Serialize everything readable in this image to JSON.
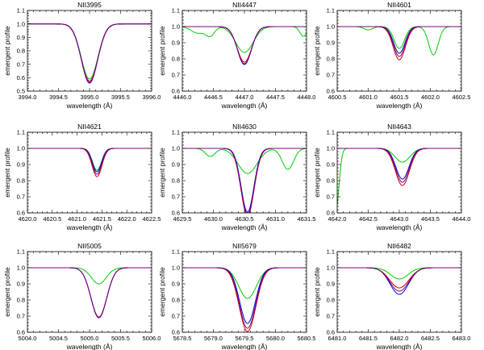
{
  "figure": {
    "xlabel": "wavelength (Å)",
    "ylabel": "emergent profile"
  },
  "chart_data": [
    {
      "type": "line",
      "title": "NII3995",
      "xlabel": "wavelength (Å)",
      "ylabel": "emergent profile",
      "xlim": [
        3994.0,
        3996.0
      ],
      "ylim": [
        0.5,
        1.1
      ],
      "xticks": [
        "3994.0",
        "3994.5",
        "3995.0",
        "3995.5",
        "3996.0"
      ],
      "yticks": [
        "0.5",
        "0.6",
        "0.7",
        "0.8",
        "0.9",
        "1.0",
        "1.1"
      ],
      "series": [
        {
          "color": "#00cc00",
          "lines": [
            {
              "center": 3995.0,
              "depth": 0.41,
              "width": 0.19
            }
          ]
        },
        {
          "color": "#cc0000",
          "lines": [
            {
              "center": 3995.0,
              "depth": 0.425,
              "width": 0.19
            }
          ]
        },
        {
          "color": "#0000cc",
          "lines": [
            {
              "center": 3995.0,
              "depth": 0.44,
              "width": 0.185
            }
          ]
        },
        {
          "color": "#800080",
          "lines": [
            {
              "center": 3995.0,
              "depth": 0.435,
              "width": 0.188
            }
          ]
        }
      ]
    },
    {
      "type": "line",
      "title": "NII4447",
      "xlabel": "wavelength (Å)",
      "ylabel": "emergent profile",
      "xlim": [
        4446.0,
        4448.0
      ],
      "ylim": [
        0.6,
        1.1
      ],
      "xticks": [
        "4446.0",
        "4446.5",
        "4447.0",
        "4447.5",
        "4448.0"
      ],
      "yticks": [
        "0.6",
        "0.7",
        "0.8",
        "0.9",
        "1.0",
        "1.1"
      ],
      "series": [
        {
          "color": "#00cc00",
          "lines": [
            {
              "center": 4447.0,
              "depth": 0.16,
              "width": 0.2
            },
            {
              "center": 4446.45,
              "depth": 0.055,
              "width": 0.1
            },
            {
              "center": 4446.25,
              "depth": 0.04,
              "width": 0.15
            },
            {
              "center": 4447.95,
              "depth": 0.06,
              "width": 0.08
            }
          ]
        },
        {
          "color": "#cc0000",
          "lines": [
            {
              "center": 4447.0,
              "depth": 0.22,
              "width": 0.165
            }
          ]
        },
        {
          "color": "#0000cc",
          "lines": [
            {
              "center": 4447.0,
              "depth": 0.235,
              "width": 0.16
            }
          ]
        },
        {
          "color": "#800080",
          "lines": [
            {
              "center": 4447.0,
              "depth": 0.23,
              "width": 0.162
            }
          ]
        }
      ]
    },
    {
      "type": "line",
      "title": "NII4601",
      "xlabel": "wavelength (Å)",
      "ylabel": "emergent profile",
      "xlim": [
        4600.5,
        4602.5
      ],
      "ylim": [
        0.6,
        1.1
      ],
      "xticks": [
        "4600.5",
        "4601.0",
        "4601.5",
        "4602.0",
        "4602.5"
      ],
      "yticks": [
        "0.6",
        "0.7",
        "0.8",
        "0.9",
        "1.0",
        "1.1"
      ],
      "series": [
        {
          "color": "#00cc00",
          "lines": [
            {
              "center": 4601.5,
              "depth": 0.135,
              "width": 0.12
            },
            {
              "center": 4602.05,
              "depth": 0.175,
              "width": 0.11
            },
            {
              "center": 4601.0,
              "depth": 0.02,
              "width": 0.1
            }
          ]
        },
        {
          "color": "#cc0000",
          "lines": [
            {
              "center": 4601.5,
              "depth": 0.205,
              "width": 0.14
            }
          ]
        },
        {
          "color": "#0000cc",
          "lines": [
            {
              "center": 4601.5,
              "depth": 0.165,
              "width": 0.13
            }
          ]
        },
        {
          "color": "#800080",
          "lines": [
            {
              "center": 4601.5,
              "depth": 0.185,
              "width": 0.135
            }
          ]
        }
      ]
    },
    {
      "type": "line",
      "title": "NII4621",
      "xlabel": "wavelength (Å)",
      "ylabel": "emergent profile",
      "xlim": [
        4620.0,
        4622.5
      ],
      "ylim": [
        0.6,
        1.1
      ],
      "xticks": [
        "4620.0",
        "4620.5",
        "4621.0",
        "4621.5",
        "4622.0",
        "4622.5"
      ],
      "yticks": [
        "0.6",
        "0.7",
        "0.8",
        "0.9",
        "1.0",
        "1.1"
      ],
      "series": [
        {
          "color": "#00cc00",
          "lines": [
            {
              "center": 4621.4,
              "depth": 0.135,
              "width": 0.13
            }
          ]
        },
        {
          "color": "#cc0000",
          "lines": [
            {
              "center": 4621.4,
              "depth": 0.175,
              "width": 0.14
            }
          ]
        },
        {
          "color": "#0000cc",
          "lines": [
            {
              "center": 4621.4,
              "depth": 0.145,
              "width": 0.13
            }
          ]
        },
        {
          "color": "#800080",
          "lines": [
            {
              "center": 4621.4,
              "depth": 0.16,
              "width": 0.135
            }
          ]
        }
      ]
    },
    {
      "type": "line",
      "title": "NII4630",
      "xlabel": "wavelength (Å)",
      "ylabel": "emergent profile",
      "xlim": [
        4629.5,
        4631.5
      ],
      "ylim": [
        0.6,
        1.1
      ],
      "xticks": [
        "4629.5",
        "4630.0",
        "4630.5",
        "4631.0",
        "4631.5"
      ],
      "yticks": [
        "0.6",
        "0.7",
        "0.8",
        "0.9",
        "1.0",
        "1.1"
      ],
      "series": [
        {
          "color": "#00cc00",
          "lines": [
            {
              "center": 4630.55,
              "depth": 0.155,
              "width": 0.22
            },
            {
              "center": 4629.95,
              "depth": 0.05,
              "width": 0.11
            },
            {
              "center": 4631.2,
              "depth": 0.13,
              "width": 0.13
            }
          ]
        },
        {
          "color": "#cc0000",
          "lines": [
            {
              "center": 4630.55,
              "depth": 0.42,
              "width": 0.15
            }
          ]
        },
        {
          "color": "#0000cc",
          "lines": [
            {
              "center": 4630.55,
              "depth": 0.395,
              "width": 0.145
            }
          ]
        },
        {
          "color": "#800080",
          "lines": [
            {
              "center": 4630.55,
              "depth": 0.41,
              "width": 0.148
            }
          ]
        }
      ]
    },
    {
      "type": "line",
      "title": "NII4643",
      "xlabel": "wavelength (Å)",
      "ylabel": "emergent profile",
      "xlim": [
        4642.0,
        4644.0
      ],
      "ylim": [
        0.6,
        1.1
      ],
      "xticks": [
        "4642.0",
        "4642.5",
        "4643.0",
        "4643.5",
        "4644.0"
      ],
      "yticks": [
        "0.6",
        "0.7",
        "0.8",
        "0.9",
        "1.0",
        "1.1"
      ],
      "series": [
        {
          "color": "#00cc00",
          "lines": [
            {
              "center": 4643.05,
              "depth": 0.085,
              "width": 0.17
            },
            {
              "center": 4641.98,
              "depth": 0.38,
              "width": 0.07
            }
          ]
        },
        {
          "color": "#cc0000",
          "lines": [
            {
              "center": 4643.05,
              "depth": 0.23,
              "width": 0.16
            }
          ]
        },
        {
          "color": "#0000cc",
          "lines": [
            {
              "center": 4643.05,
              "depth": 0.19,
              "width": 0.15
            }
          ]
        },
        {
          "color": "#800080",
          "lines": [
            {
              "center": 4643.05,
              "depth": 0.21,
              "width": 0.155
            }
          ]
        }
      ]
    },
    {
      "type": "line",
      "title": "NII5005",
      "xlabel": "wavelength (Å)",
      "ylabel": "emergent profile",
      "xlim": [
        5004.0,
        5006.0
      ],
      "ylim": [
        0.6,
        1.1
      ],
      "xticks": [
        "5004.0",
        "5004.5",
        "5005.0",
        "5005.5",
        "5006.0"
      ],
      "yticks": [
        "0.6",
        "0.7",
        "0.8",
        "0.9",
        "1.0",
        "1.1"
      ],
      "series": [
        {
          "color": "#00cc00",
          "lines": [
            {
              "center": 5005.15,
              "depth": 0.1,
              "width": 0.17
            }
          ]
        },
        {
          "color": "#cc0000",
          "lines": [
            {
              "center": 5005.15,
              "depth": 0.305,
              "width": 0.18
            }
          ]
        },
        {
          "color": "#0000cc",
          "lines": [
            {
              "center": 5005.15,
              "depth": 0.31,
              "width": 0.18
            }
          ]
        },
        {
          "color": "#800080",
          "lines": [
            {
              "center": 5005.15,
              "depth": 0.308,
              "width": 0.18
            }
          ]
        }
      ]
    },
    {
      "type": "line",
      "title": "NII5679",
      "xlabel": "wavelength (Å)",
      "ylabel": "emergent profile",
      "xlim": [
        5678.5,
        5680.5
      ],
      "ylim": [
        0.6,
        1.1
      ],
      "xticks": [
        "5678.5",
        "5679.0",
        "5679.5",
        "5680.0",
        "5680.5"
      ],
      "yticks": [
        "0.6",
        "0.7",
        "0.8",
        "0.9",
        "1.0",
        "1.1"
      ],
      "series": [
        {
          "color": "#00cc00",
          "lines": [
            {
              "center": 5679.55,
              "depth": 0.19,
              "width": 0.2
            }
          ]
        },
        {
          "color": "#cc0000",
          "lines": [
            {
              "center": 5679.55,
              "depth": 0.395,
              "width": 0.19
            }
          ]
        },
        {
          "color": "#0000cc",
          "lines": [
            {
              "center": 5679.55,
              "depth": 0.345,
              "width": 0.18
            }
          ]
        },
        {
          "color": "#800080",
          "lines": [
            {
              "center": 5679.55,
              "depth": 0.375,
              "width": 0.185
            }
          ]
        }
      ]
    },
    {
      "type": "line",
      "title": "NII6482",
      "xlabel": "wavelength (Å)",
      "ylabel": "emergent profile",
      "xlim": [
        6481.0,
        6483.0
      ],
      "ylim": [
        0.6,
        1.1
      ],
      "xticks": [
        "6481.0",
        "6481.5",
        "6482.0",
        "6482.5",
        "6483.0"
      ],
      "yticks": [
        "0.6",
        "0.7",
        "0.8",
        "0.9",
        "1.0",
        "1.1"
      ],
      "series": [
        {
          "color": "#00cc00",
          "lines": [
            {
              "center": 6482.0,
              "depth": 0.07,
              "width": 0.2
            }
          ]
        },
        {
          "color": "#cc0000",
          "lines": [
            {
              "center": 6482.0,
              "depth": 0.125,
              "width": 0.22
            }
          ]
        },
        {
          "color": "#0000cc",
          "lines": [
            {
              "center": 6482.0,
              "depth": 0.165,
              "width": 0.21
            }
          ]
        },
        {
          "color": "#800080",
          "lines": [
            {
              "center": 6482.0,
              "depth": 0.145,
              "width": 0.215
            }
          ]
        }
      ]
    }
  ]
}
